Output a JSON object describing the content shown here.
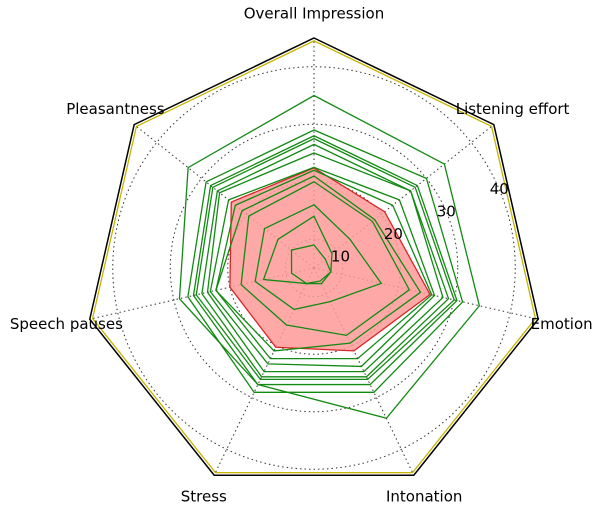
{
  "chart_data": {
    "type": "radar",
    "categories": [
      "Overall Impression",
      "Listening effort",
      "Emotion",
      "Intonation",
      "Stress",
      "Speech pauses",
      "Pleasantness"
    ],
    "rlim": [
      5,
      45
    ],
    "rticks": [
      10,
      20,
      30,
      40
    ],
    "grid": true,
    "series": [
      {
        "color": "#c8b400",
        "values": [
          44.5,
          44.5,
          44.5,
          44.5,
          44.5,
          44.5,
          44.5
        ]
      },
      {
        "color": "#d62728",
        "fill": "#ff9999",
        "values": [
          22.4,
          20.7,
          25.7,
          21,
          20.3,
          20,
          23.4
        ]
      },
      {
        "color": "#138a13",
        "values": [
          35,
          34,
          34.5,
          34,
          27.5,
          29,
          33
        ]
      },
      {
        "color": "#138a13",
        "values": [
          29,
          30,
          31.5,
          29,
          29,
          27.5,
          29
        ]
      },
      {
        "color": "#138a13",
        "values": [
          28,
          28,
          30.5,
          27.5,
          27.5,
          26.5,
          28
        ]
      },
      {
        "color": "#138a13",
        "values": [
          27.5,
          27.5,
          30,
          26.5,
          26.5,
          26,
          27.5
        ]
      },
      {
        "color": "#138a13",
        "values": [
          26.5,
          26.5,
          29,
          26,
          26,
          25,
          26.5
        ]
      },
      {
        "color": "#138a13",
        "values": [
          25,
          26.5,
          28,
          25,
          25,
          24,
          26
        ]
      },
      {
        "color": "#138a13",
        "values": [
          22.5,
          24,
          26.5,
          24,
          23.5,
          23.5,
          24
        ]
      },
      {
        "color": "#138a13",
        "values": [
          22,
          22.5,
          26,
          22.5,
          22.5,
          22.5,
          22.5
        ]
      },
      {
        "color": "#138a13",
        "values": [
          21,
          18.5,
          24,
          19.5,
          21,
          22.5,
          21
        ]
      },
      {
        "color": "#138a13",
        "values": [
          20,
          18,
          22,
          18,
          16,
          18,
          19.5
        ]
      },
      {
        "color": "#138a13",
        "values": [
          16,
          13,
          17,
          11.5,
          13,
          15.5,
          16
        ]
      },
      {
        "color": "#138a13",
        "values": [
          14,
          9,
          8,
          7.5,
          8,
          14,
          13
        ]
      },
      {
        "color": "#138a13",
        "values": [
          9,
          7.5,
          8,
          8,
          8,
          9,
          10
        ]
      }
    ]
  }
}
